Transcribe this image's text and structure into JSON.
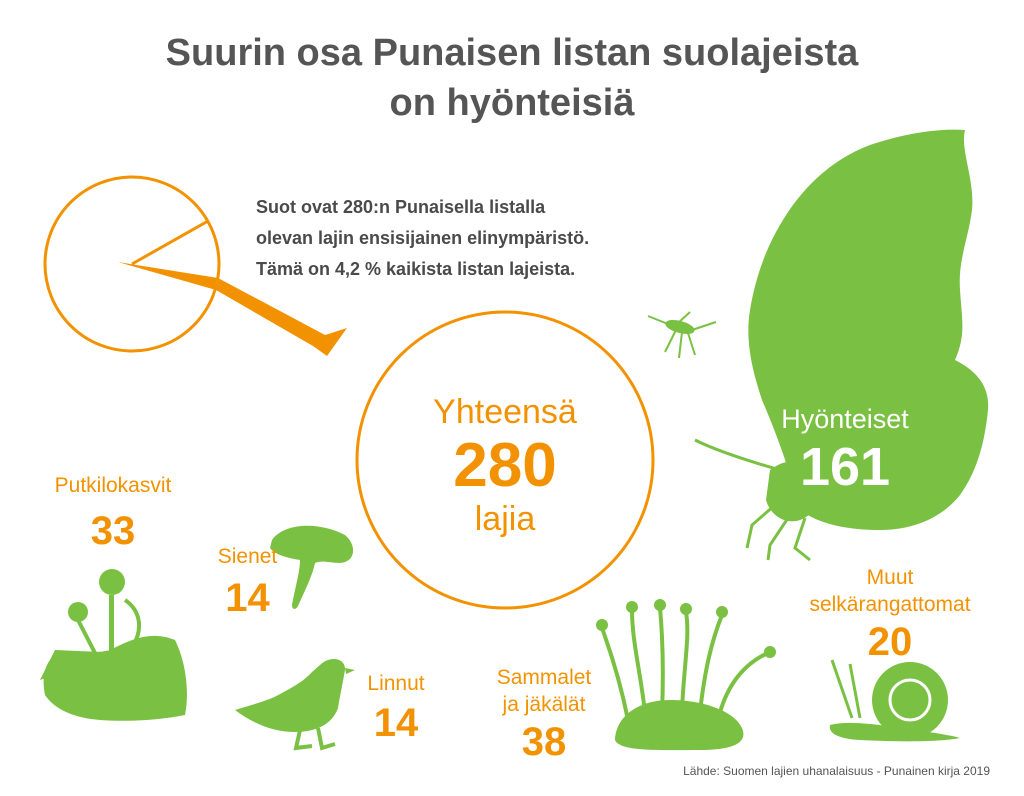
{
  "title": {
    "line1": "Suurin osa Punaisen listan suolajeista",
    "line2": "on hyönteisiä"
  },
  "description": {
    "line1": "Suot ovat 280:n Punaisella listalla",
    "line2": "olevan lajin ensisijainen elinympäristö.",
    "line3": "Tämä on 4,2 % kaikista listan lajeista."
  },
  "total": {
    "label": "Yhteensä",
    "value": "280",
    "unit": "lajia"
  },
  "categories": {
    "insects": {
      "label": "Hyönteiset",
      "value": "161"
    },
    "vascular_plants": {
      "label": "Putkilokasvit",
      "value": "33"
    },
    "fungi": {
      "label": "Sienet",
      "value": "14"
    },
    "birds": {
      "label": "Linnut",
      "value": "14"
    },
    "mosses_lichens": {
      "label_line1": "Sammalet",
      "label_line2": "ja jäkälät",
      "value": "38"
    },
    "other_invertebrates": {
      "label_line1": "Muut",
      "label_line2": "selkärangattomat",
      "value": "20"
    }
  },
  "share_percent": 4.2,
  "colors": {
    "orange": "#f39200",
    "green": "#7ac143",
    "title_gray": "#555555",
    "text_gray": "#4a4a4a"
  },
  "icons": [
    "butterfly-icon",
    "mosquito-icon",
    "plant-icon",
    "mushroom-icon",
    "grouse-icon",
    "moss-icon",
    "snail-icon"
  ],
  "source": "Lähde: Suomen lajien uhanalaisuus - Punainen kirja 2019"
}
